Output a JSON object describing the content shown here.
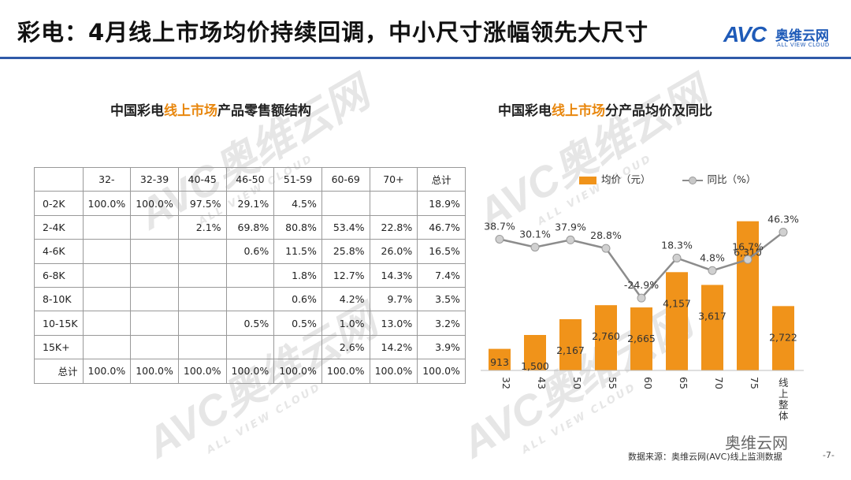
{
  "header": {
    "title": "彩电：4月线上市场均价持续回调，中小尺寸涨幅领先大尺寸",
    "logo_text": "AVC",
    "logo_cn": "奥维云网",
    "logo_en": "ALL VIEW CLOUD"
  },
  "watermark": {
    "text": "AVC奥维云网",
    "sub": "ALL VIEW CLOUD"
  },
  "left_panel": {
    "title_pre": "中国彩电",
    "title_hl": "线上市场",
    "title_post": "产品零售额结构"
  },
  "right_panel": {
    "title_pre": "中国彩电",
    "title_hl": "线上市场",
    "title_post": "分产品均价及同比"
  },
  "colors": {
    "accent": "#f0931a",
    "line": "#8c8c8c",
    "brand": "#1f5bb8",
    "title_rule": "#2f5aa8"
  },
  "chart_data": [
    {
      "type": "table",
      "columns": [
        "",
        "32-",
        "32-39",
        "40-45",
        "46-50",
        "51-59",
        "60-69",
        "70+",
        "总计"
      ],
      "rows": [
        [
          "0-2K",
          "100.0%",
          "100.0%",
          "97.5%",
          "29.1%",
          "4.5%",
          "",
          "",
          "18.9%"
        ],
        [
          "2-4K",
          "",
          "",
          "2.1%",
          "69.8%",
          "80.8%",
          "53.4%",
          "22.8%",
          "46.7%"
        ],
        [
          "4-6K",
          "",
          "",
          "",
          "0.6%",
          "11.5%",
          "25.8%",
          "26.0%",
          "16.5%"
        ],
        [
          "6-8K",
          "",
          "",
          "",
          "",
          "1.8%",
          "12.7%",
          "14.3%",
          "7.4%"
        ],
        [
          "8-10K",
          "",
          "",
          "",
          "",
          "0.6%",
          "4.2%",
          "9.7%",
          "3.5%"
        ],
        [
          "10-15K",
          "",
          "",
          "",
          "0.5%",
          "0.5%",
          "1.0%",
          "13.0%",
          "3.2%"
        ],
        [
          "15K+",
          "",
          "",
          "",
          "",
          "",
          "2.6%",
          "14.2%",
          "3.9%"
        ],
        [
          "总计",
          "100.0%",
          "100.0%",
          "100.0%",
          "100.0%",
          "100.0%",
          "100.0%",
          "100.0%",
          "100.0%"
        ]
      ]
    },
    {
      "type": "bar",
      "categories": [
        "32",
        "43",
        "50",
        "55",
        "60",
        "65",
        "70",
        "75",
        "线上整体"
      ],
      "series": [
        {
          "name": "均价（元）",
          "type": "bar",
          "values": [
            913,
            1500,
            2167,
            2760,
            2665,
            4157,
            3617,
            6310,
            2722
          ],
          "labels": [
            "913",
            "1,500",
            "2,167",
            "2,760",
            "2,665",
            "4,157",
            "3,617",
            "6,310",
            "2,722"
          ]
        },
        {
          "name": "同比（%）",
          "type": "line",
          "values": [
            38.7,
            30.1,
            37.9,
            28.8,
            -24.9,
            18.3,
            4.8,
            16.7,
            46.3
          ],
          "labels": [
            "38.7%",
            "30.1%",
            "37.9%",
            "28.8%",
            "-24.9%",
            "18.3%",
            "4.8%",
            "16.7%",
            "46.3%"
          ]
        }
      ],
      "bar_range": [
        0,
        6500
      ],
      "line_range": [
        -35,
        80
      ],
      "grid": false,
      "legend_position": "top"
    }
  ],
  "footer": {
    "source": "数据来源：奥维云网(AVC)线上监测数据",
    "page": "-7-",
    "wechat": "奥维云网"
  }
}
